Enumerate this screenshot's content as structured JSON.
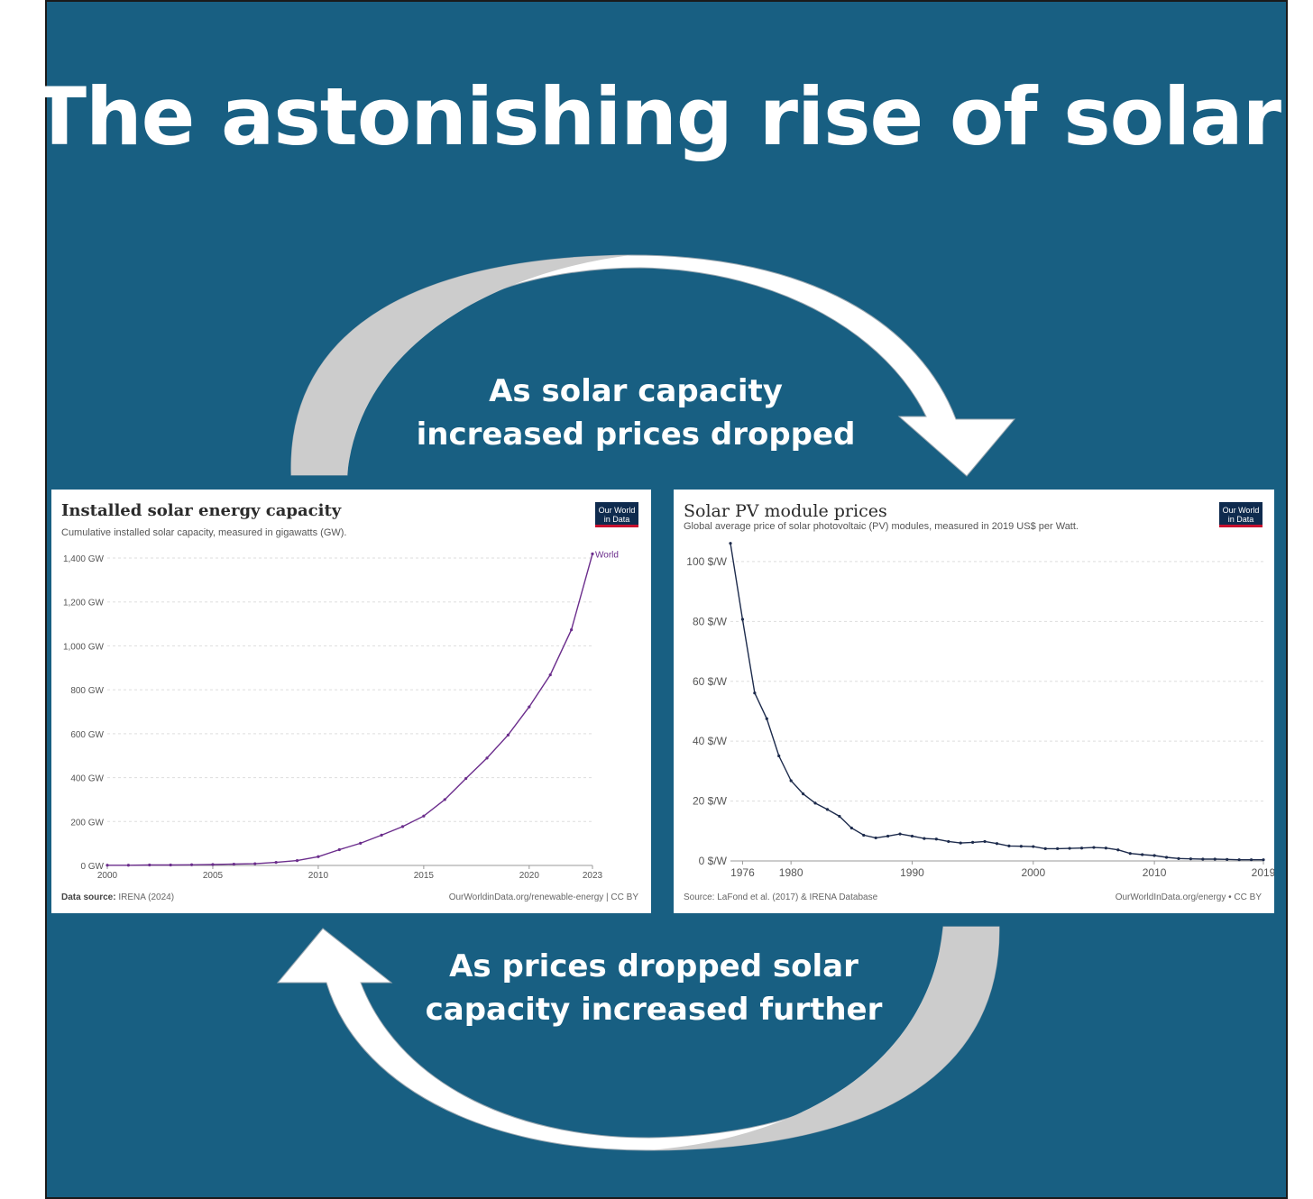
{
  "poster": {
    "title": "The astonishing rise of solar",
    "caption_top": [
      "As solar capacity",
      "increased prices dropped"
    ],
    "caption_bottom": [
      "As prices dropped solar",
      "capacity increased further"
    ],
    "colors": {
      "background": "#185f82",
      "arrow_white": "#ffffff",
      "arrow_shadow": "#cccccc",
      "capacity_line": "#6b2d8c",
      "price_line": "#1d2b4c"
    }
  },
  "chart_data": [
    {
      "type": "line",
      "title": "Installed solar energy capacity",
      "subtitle": "Cumulative installed solar capacity, measured in gigawatts (GW).",
      "source_label": "Data source:",
      "source_value": "IRENA (2024)",
      "credit": "OurWorldinData.org/renewable-energy | CC BY",
      "logo": [
        "Our World",
        "in Data"
      ],
      "y_unit_suffix": " GW",
      "ylim": [
        0,
        1400
      ],
      "yticks": [
        0,
        200,
        400,
        600,
        800,
        1000,
        1200,
        1400
      ],
      "ytick_labels": [
        "0 GW",
        "200 GW",
        "400 GW",
        "600 GW",
        "800 GW",
        "1,000 GW",
        "1,200 GW",
        "1,400 GW"
      ],
      "xlim": [
        2000,
        2023
      ],
      "xticks": [
        2000,
        2005,
        2010,
        2015,
        2020,
        2023
      ],
      "grid": true,
      "series": [
        {
          "name": "World",
          "x": [
            2000,
            2001,
            2002,
            2003,
            2004,
            2005,
            2006,
            2007,
            2008,
            2009,
            2010,
            2011,
            2012,
            2013,
            2014,
            2015,
            2016,
            2017,
            2018,
            2019,
            2020,
            2021,
            2022,
            2023
          ],
          "values": [
            1,
            1,
            2,
            2,
            3,
            4,
            6,
            8,
            14,
            22,
            40,
            72,
            101,
            138,
            177,
            225,
            300,
            396,
            489,
            594,
            722,
            868,
            1073,
            1419
          ]
        }
      ]
    },
    {
      "type": "line",
      "title": "Solar PV module prices",
      "subtitle": "Global average price of solar photovoltaic (PV) modules, measured in 2019 US$ per Watt.",
      "source_label": "Source:",
      "source_value": "LaFond et al. (2017) & IRENA Database",
      "credit": "OurWorldInData.org/energy • CC BY",
      "logo": [
        "Our World",
        "in Data"
      ],
      "ylim": [
        0,
        106
      ],
      "yticks": [
        0,
        20,
        40,
        60,
        80,
        100
      ],
      "ytick_labels": [
        "0 $/W",
        "20 $/W",
        "40 $/W",
        "60 $/W",
        "80 $/W",
        "100 $/W"
      ],
      "xlim": [
        1975,
        2019
      ],
      "xticks": [
        1976,
        1980,
        1990,
        2000,
        2010,
        2019
      ],
      "grid": true,
      "series": [
        {
          "name": "",
          "x": [
            1975,
            1976,
            1977,
            1978,
            1979,
            1980,
            1981,
            1982,
            1983,
            1984,
            1985,
            1986,
            1987,
            1988,
            1989,
            1990,
            1991,
            1992,
            1993,
            1994,
            1995,
            1996,
            1997,
            1998,
            1999,
            2000,
            2001,
            2002,
            2003,
            2004,
            2005,
            2006,
            2007,
            2008,
            2009,
            2010,
            2011,
            2012,
            2013,
            2014,
            2015,
            2016,
            2017,
            2018,
            2019
          ],
          "values": [
            106.1,
            80.7,
            56.1,
            47.5,
            35.1,
            26.8,
            22.4,
            19.3,
            17.2,
            14.9,
            11.0,
            8.6,
            7.7,
            8.3,
            9.0,
            8.3,
            7.5,
            7.3,
            6.5,
            6.0,
            6.2,
            6.5,
            5.8,
            5.0,
            4.9,
            4.8,
            4.1,
            4.1,
            4.2,
            4.3,
            4.5,
            4.3,
            3.7,
            2.5,
            2.1,
            1.8,
            1.2,
            0.8,
            0.7,
            0.6,
            0.6,
            0.5,
            0.4,
            0.4,
            0.4
          ]
        }
      ]
    }
  ]
}
